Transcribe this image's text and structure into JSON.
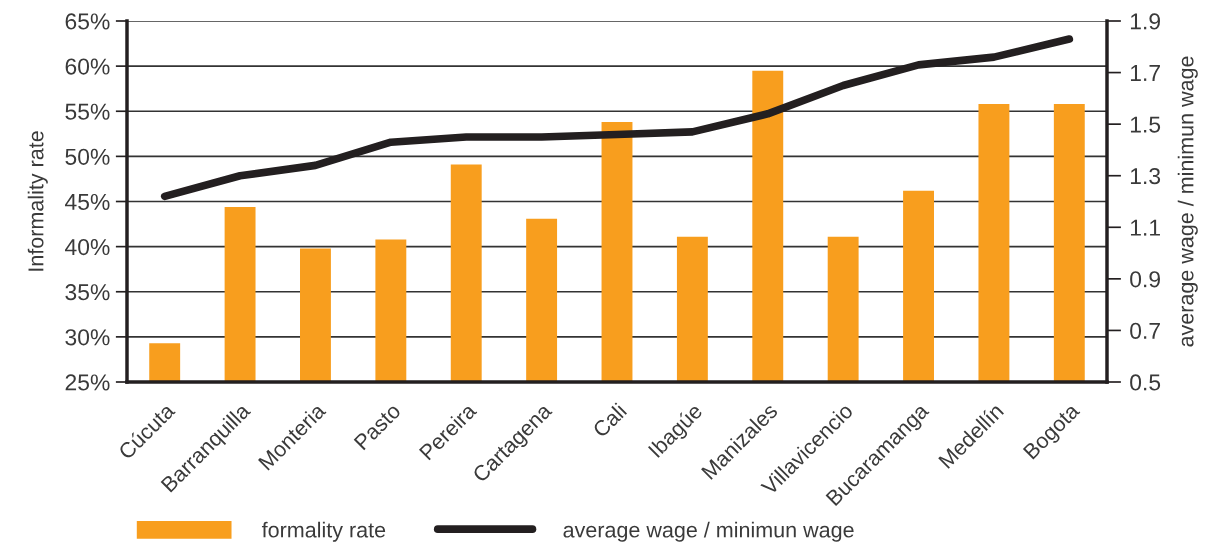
{
  "chart_data": {
    "type": "bar",
    "categories": [
      "Cúcuta",
      "Barranquilla",
      "Monteria",
      "Pasto",
      "Pereira",
      "Cartagena",
      "Cali",
      "Ibagúe",
      "Manizales",
      "Villavicencio",
      "Bucaramanga",
      "Medellín",
      "Bogota"
    ],
    "series": [
      {
        "name": "formality rate",
        "color": "#f89e1e",
        "values": [
          29.3,
          44.4,
          39.8,
          40.8,
          49.1,
          43.1,
          53.8,
          41.1,
          59.5,
          41.1,
          46.2,
          55.8,
          55.8
        ]
      },
      {
        "name": "average wage / minimun wage",
        "type": "line",
        "axis": "y2",
        "color": "#231f20",
        "values": [
          1.22,
          1.3,
          1.34,
          1.43,
          1.45,
          1.45,
          1.46,
          1.47,
          1.54,
          1.65,
          1.73,
          1.76,
          1.83
        ]
      }
    ],
    "ylabel": "Informality rate",
    "y2label": "average wage / minimun wage",
    "ylim": [
      25,
      65
    ],
    "yticks": [
      {
        "value": 25,
        "label": "25%"
      },
      {
        "value": 30,
        "label": "30%"
      },
      {
        "value": 35,
        "label": "35%"
      },
      {
        "value": 40,
        "label": "40%"
      },
      {
        "value": 45,
        "label": "45%"
      },
      {
        "value": 50,
        "label": "50%"
      },
      {
        "value": 55,
        "label": "55%"
      },
      {
        "value": 60,
        "label": "60%"
      },
      {
        "value": 65,
        "label": "65%"
      }
    ],
    "y2lim": [
      0.5,
      1.9
    ],
    "y2ticks": [
      0.5,
      0.7,
      0.9,
      1.1,
      1.3,
      1.5,
      1.7,
      1.9
    ],
    "grid": "y",
    "legend": "bottom"
  }
}
